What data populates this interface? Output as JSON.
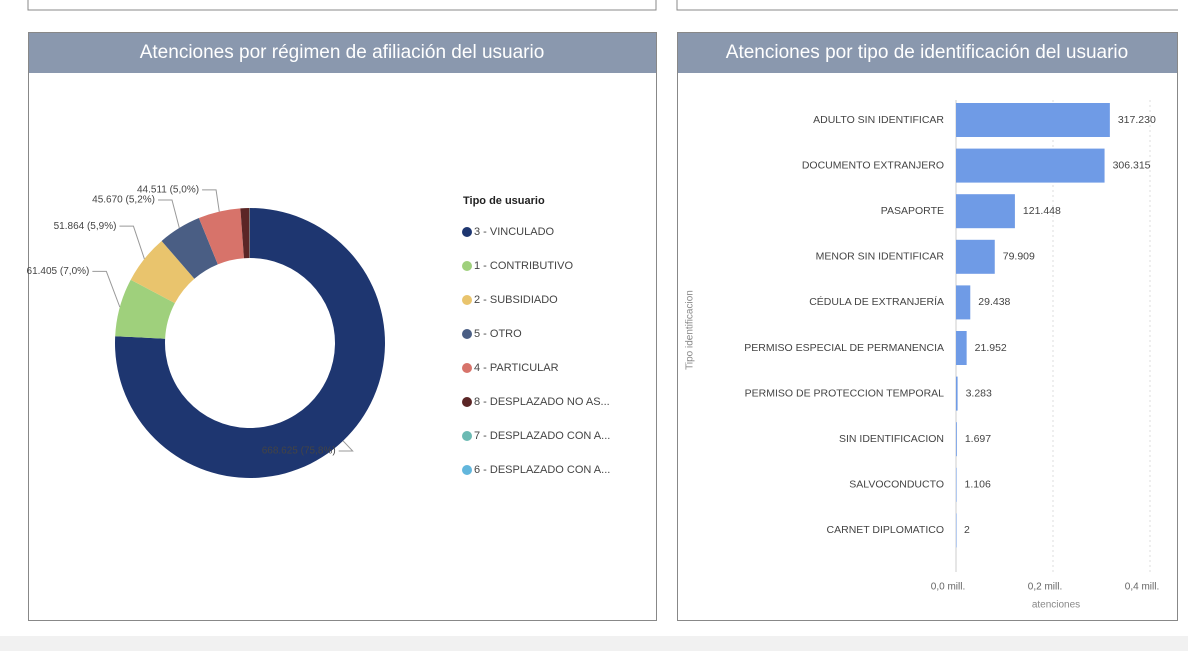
{
  "chart_data": [
    {
      "type": "donut",
      "title": "Atenciones por régimen de afiliación del usuario",
      "legend_title": "Tipo de usuario",
      "categories": [
        "3 - VINCULADO",
        "1 - CONTRIBUTIVO",
        "2 - SUBSIDIADO",
        "5 - OTRO",
        "4 - PARTICULAR",
        "8 - DESPLAZADO NO AS...",
        "7 - DESPLAZADO CON A...",
        "6 - DESPLAZADO CON A..."
      ],
      "values": [
        668625,
        61405,
        51864,
        45670,
        44511,
        9500,
        300,
        200
      ],
      "value_labels": [
        "668.625 (75,8%)",
        "61.405 (7,0%)",
        "51.864 (5,9%)",
        "45.670 (5,2%)",
        "44.511 (5,0%)",
        null,
        null,
        null
      ],
      "colors": [
        "#1e3670",
        "#9fd07c",
        "#e9c46d",
        "#4a5e84",
        "#d7736a",
        "#5b2626",
        "#6bbab3",
        "#62b6dc"
      ],
      "legend": "right"
    },
    {
      "type": "hbar",
      "title": "Atenciones por tipo de identificación del usuario",
      "x_label": "atenciones",
      "y_label": "Tipo identificacion",
      "categories": [
        "ADULTO SIN IDENTIFICAR",
        "DOCUMENTO EXTRANJERO",
        "PASAPORTE",
        "MENOR SIN IDENTIFICAR",
        "CÉDULA DE EXTRANJERÍA",
        "PERMISO ESPECIAL DE PERMANENCIA",
        "PERMISO DE PROTECCION TEMPORAL",
        "SIN IDENTIFICACION",
        "SALVOCONDUCTO",
        "CARNET DIPLOMATICO"
      ],
      "values": [
        317230,
        306315,
        121448,
        79909,
        29438,
        21952,
        3283,
        1697,
        1106,
        2
      ],
      "value_labels": [
        "317.230",
        "306.315",
        "121.448",
        "79.909",
        "29.438",
        "21.952",
        "3.283",
        "1.697",
        "1.106",
        "2"
      ],
      "color": "#6f9be6",
      "xlim": [
        0,
        460000
      ],
      "xticks": [
        {
          "value": 0,
          "label": "0,0 mill."
        },
        {
          "value": 200000,
          "label": "0,2 mill."
        },
        {
          "value": 400000,
          "label": "0,4 mill."
        }
      ],
      "grid": true
    }
  ]
}
